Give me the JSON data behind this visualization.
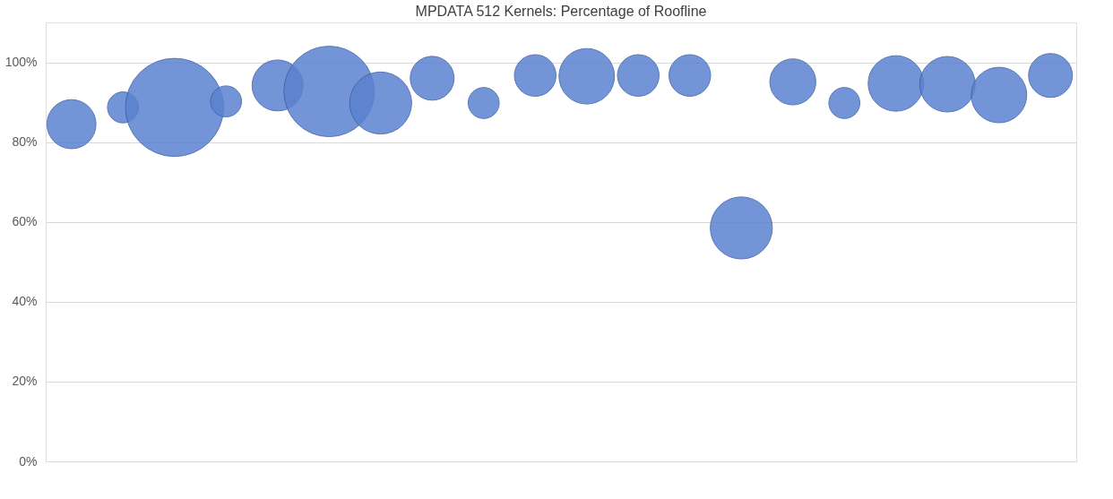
{
  "chart_data": {
    "type": "bubble",
    "title": "MPDATA 512 Kernels: Percentage of Roofline",
    "categories": [
      null,
      null,
      null,
      null,
      null,
      null,
      null,
      null,
      null,
      null,
      null,
      null,
      null,
      null,
      null,
      null,
      null,
      null,
      null,
      null
    ],
    "series": [
      {
        "color": "#5b82d0",
        "values": [
          84.5,
          88.7,
          88.7,
          90.2,
          94.2,
          92.7,
          89.8,
          96,
          89.8,
          96.7,
          96.5,
          96.7,
          96.7,
          58.5,
          95.1,
          89.8,
          94.7,
          94.5,
          91.8,
          96.7
        ],
        "sizes": [
          0.25,
          0.1,
          1,
          0.1,
          0.27,
          0.85,
          0.4,
          0.2,
          0.1,
          0.18,
          0.32,
          0.18,
          0.18,
          0.4,
          0.22,
          0.1,
          0.32,
          0.32,
          0.32,
          0.2
        ]
      }
    ],
    "ylim": [
      0,
      110
    ],
    "yticks": [
      {
        "value": 0,
        "label": "0%"
      },
      {
        "value": 20,
        "label": "20%"
      },
      {
        "value": 40,
        "label": "40%"
      },
      {
        "value": 60,
        "label": "60%"
      },
      {
        "value": 80,
        "label": "80%"
      },
      {
        "value": 100,
        "label": "100%"
      }
    ],
    "grid": "y",
    "legend": false,
    "tick_labels": "y"
  }
}
